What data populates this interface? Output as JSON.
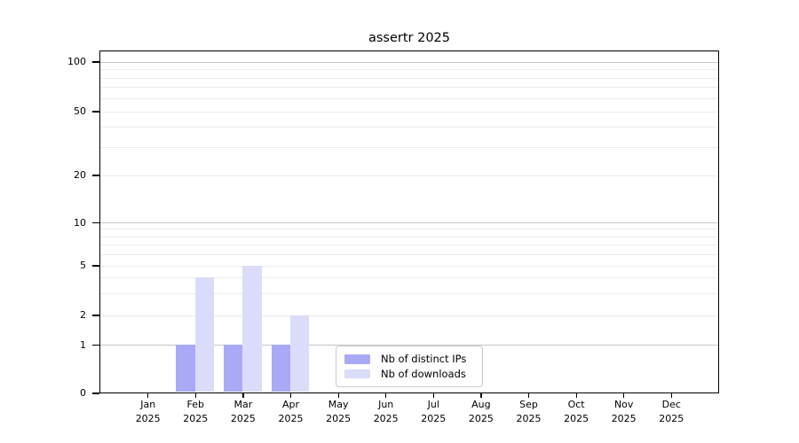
{
  "page_title": "assertr 2025",
  "chart_data": {
    "type": "bar",
    "title": "assertr 2025",
    "categories": [
      "Jan",
      "Feb",
      "Mar",
      "Apr",
      "May",
      "Jun",
      "Jul",
      "Aug",
      "Sep",
      "Oct",
      "Nov",
      "Dec"
    ],
    "tick_year": "2025",
    "series": [
      {
        "name": "Nb of distinct IPs",
        "color": "#aaa9f6",
        "values": [
          0,
          1,
          1,
          1,
          0,
          0,
          0,
          0,
          0,
          0,
          0,
          0
        ]
      },
      {
        "name": "Nb of downloads",
        "color": "#dbdbfa",
        "values": [
          0,
          4,
          5,
          2,
          0,
          0,
          0,
          0,
          0,
          0,
          0,
          0
        ]
      }
    ],
    "xlabel": "",
    "ylabel": "",
    "yscale": "log-like (0 baseline, log spacing above 1)",
    "ytick_labels": [
      0,
      1,
      2,
      5,
      10,
      20,
      50,
      100
    ],
    "decade_gridlines": [
      1,
      10,
      100
    ],
    "minor_gridlines": [
      3,
      4,
      6,
      7,
      8,
      9,
      30,
      40,
      60,
      70,
      80,
      90
    ],
    "ylim": [
      0,
      118
    ],
    "grid": true,
    "legend": {
      "position": "lower center",
      "items": [
        "Nb of distinct IPs",
        "Nb of downloads"
      ]
    }
  },
  "colors": {
    "background": "#ffffff",
    "axis": "#000000",
    "decade_gridline": "#c6c6c6",
    "minor_gridline": "#ebebeb",
    "legend_border": "#cccccc",
    "series_ips": "#aaa9f6",
    "series_downloads": "#dbdbfa"
  }
}
